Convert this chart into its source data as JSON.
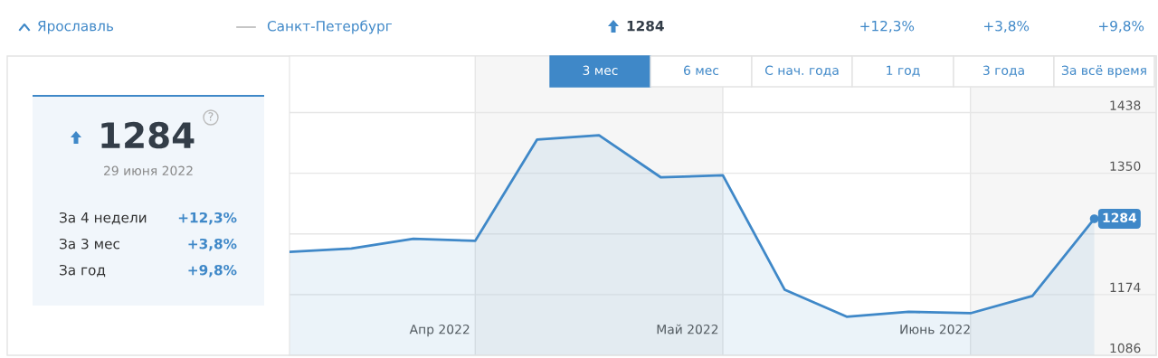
{
  "chart_data": {
    "type": "area",
    "x": [
      "2022-03-30",
      "2022-04-06",
      "2022-04-13",
      "2022-04-20",
      "2022-04-27",
      "2022-05-04",
      "2022-05-11",
      "2022-05-18",
      "2022-05-25",
      "2022-06-01",
      "2022-06-08",
      "2022-06-15",
      "2022-06-22",
      "2022-06-29"
    ],
    "series": [
      {
        "color": "#3f88c8",
        "values": [
          1236,
          1241,
          1255,
          1252,
          1399,
          1405,
          1344,
          1347,
          1181,
          1142,
          1149,
          1147,
          1172,
          1284
        ]
      }
    ],
    "xlim": [
      "2022-03-30",
      "2022-07-06"
    ],
    "xticks": [
      {
        "value": "2022-04-16",
        "label": "Апр 2022"
      },
      {
        "value": "2022-05-14",
        "label": "Май 2022"
      },
      {
        "value": "2022-06-11",
        "label": "Июнь 2022"
      }
    ],
    "ylim": [
      1086,
      1520
    ],
    "yticks": [
      1086,
      1174,
      {
        "value": 1262,
        "label": null
      },
      1350,
      1438
    ],
    "grid": "y",
    "marker": "none",
    "line_style": "solid",
    "bands": [
      {
        "axis": "x",
        "from": "2022-04-20",
        "to": "2022-05-18",
        "color": "#f6f6f6"
      },
      {
        "axis": "x",
        "from": "2022-06-15",
        "to": "2022-07-06",
        "color": "#f6f6f6"
      }
    ],
    "annotations": [
      "Ярославль",
      "Санкт-Петербург",
      "1284",
      "+12,3%",
      "+3,8%",
      "+9,8%",
      "1284",
      "?",
      "29 июня 2022",
      "За 4 недели",
      "+12,3%",
      "За 3 мес",
      "+3,8%",
      "За год",
      "+9,8%",
      "3 мес",
      "6 мес",
      "С нач. года",
      "1 год",
      "3 года",
      "За всё время",
      {
        "text": "1284",
        "x": "2022-06-29",
        "y": 1284
      }
    ]
  }
}
